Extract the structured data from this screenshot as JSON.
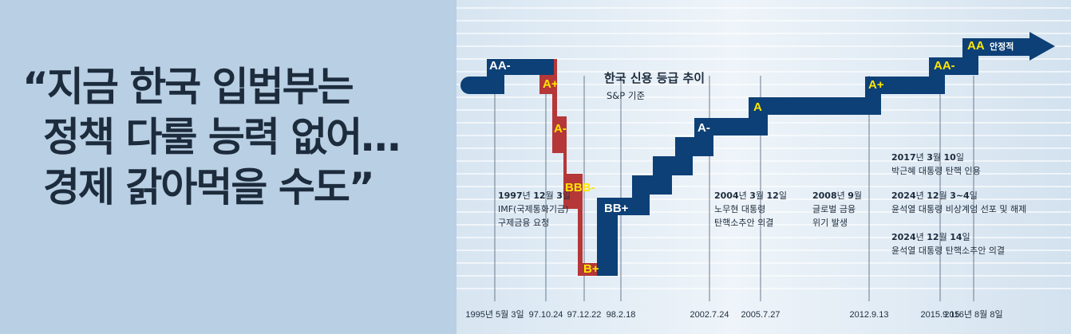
{
  "quote": {
    "line1": "“지금 한국 입법부는",
    "line2": "정책 다룰 능력 없어…",
    "line3": "경제 갉아먹을 수도”"
  },
  "chart_data": {
    "type": "line",
    "title": "한국 신용 등급 추이",
    "subtitle": "S&P 기준",
    "rating_scale": [
      "B+",
      "BB+",
      "BBB-",
      "A-",
      "A",
      "A+",
      "AA-",
      "AA"
    ],
    "points": [
      {
        "x": "1995년 5월 3일",
        "rating": "AA-"
      },
      {
        "x": "97.10.24",
        "rating": "A+"
      },
      {
        "x": "97.12.22",
        "rating": "B+"
      },
      {
        "x": "98.2.18",
        "rating": "BB+"
      },
      {
        "x": "2002.7.24",
        "rating": "A-"
      },
      {
        "x": "2005.7.27",
        "rating": "A"
      },
      {
        "x": "2012.9.13",
        "rating": "A+"
      },
      {
        "x": "2015.9.15",
        "rating": "AA-"
      },
      {
        "x": "2016년 8월 8일",
        "rating": "AA"
      }
    ],
    "level_labels": [
      {
        "text": "AA-",
        "color": "#ffffff"
      },
      {
        "text": "A+",
        "color": "#ffe600"
      },
      {
        "text": "A-",
        "color": "#ffe600"
      },
      {
        "text": "BBB-",
        "color": "#ffe600"
      },
      {
        "text": "B+",
        "color": "#ffe600"
      },
      {
        "text": "BB+",
        "color": "#ffffff"
      },
      {
        "text": "A-",
        "color": "#ffffff"
      },
      {
        "text": "A",
        "color": "#ffe600"
      },
      {
        "text": "A+",
        "color": "#ffe600"
      },
      {
        "text": "AA-",
        "color": "#ffe600"
      },
      {
        "text": "AA",
        "color": "#ffe600"
      }
    ],
    "end_label": "안정적",
    "x_ticks": [
      "1995년 5월 3일",
      "97.10.24",
      "97.12.22",
      "98.2.18",
      "2002.7.24",
      "2005.7.27",
      "2012.9.13",
      "2015.9.15",
      "2016년 8월 8일"
    ],
    "annotations": [
      {
        "parts": [
          {
            "t": "1997",
            "b": true
          },
          {
            "t": "년 ",
            "b": false
          },
          {
            "t": "12",
            "b": true
          },
          {
            "t": "월 ",
            "b": false
          },
          {
            "t": "3",
            "b": true
          },
          {
            "t": "일",
            "b": false
          }
        ],
        "lines": [
          "IMF(국제통화기금)",
          "구제금융 요청"
        ]
      },
      {
        "parts": [
          {
            "t": "2004",
            "b": true
          },
          {
            "t": "년 ",
            "b": false
          },
          {
            "t": "3",
            "b": true
          },
          {
            "t": "월 ",
            "b": false
          },
          {
            "t": "12",
            "b": true
          },
          {
            "t": "일",
            "b": false
          }
        ],
        "lines": [
          "노무현 대통령",
          "탄핵소추안 의결"
        ]
      },
      {
        "parts": [
          {
            "t": "2008",
            "b": true
          },
          {
            "t": "년 ",
            "b": false
          },
          {
            "t": "9",
            "b": true
          },
          {
            "t": "월",
            "b": false
          }
        ],
        "lines": [
          "글로벌 금융",
          "위기 발생"
        ]
      },
      {
        "parts": [
          {
            "t": "2017",
            "b": true
          },
          {
            "t": "년 ",
            "b": false
          },
          {
            "t": "3",
            "b": true
          },
          {
            "t": "월 ",
            "b": false
          },
          {
            "t": "10",
            "b": true
          },
          {
            "t": "일",
            "b": false
          }
        ],
        "lines": [
          "박근혜 대통령 탄핵 인용"
        ]
      },
      {
        "parts": [
          {
            "t": "2024",
            "b": true
          },
          {
            "t": "년 ",
            "b": false
          },
          {
            "t": "12",
            "b": true
          },
          {
            "t": "월 ",
            "b": false
          },
          {
            "t": "3~4",
            "b": true
          },
          {
            "t": "일",
            "b": false
          }
        ],
        "lines": [
          "윤석열 대통령 비상계엄 선포 및 해제"
        ]
      },
      {
        "parts": [
          {
            "t": "2024",
            "b": true
          },
          {
            "t": "년 ",
            "b": false
          },
          {
            "t": "12",
            "b": true
          },
          {
            "t": "월 ",
            "b": false
          },
          {
            "t": "14",
            "b": true
          },
          {
            "t": "일",
            "b": false
          }
        ],
        "lines": [
          "윤석열 대통령 탄핵소추안 의결"
        ]
      }
    ],
    "colors": {
      "up": "#0d4076",
      "down": "#b53737",
      "label_yellow": "#ffe600",
      "background": "#b9cfe3"
    }
  }
}
